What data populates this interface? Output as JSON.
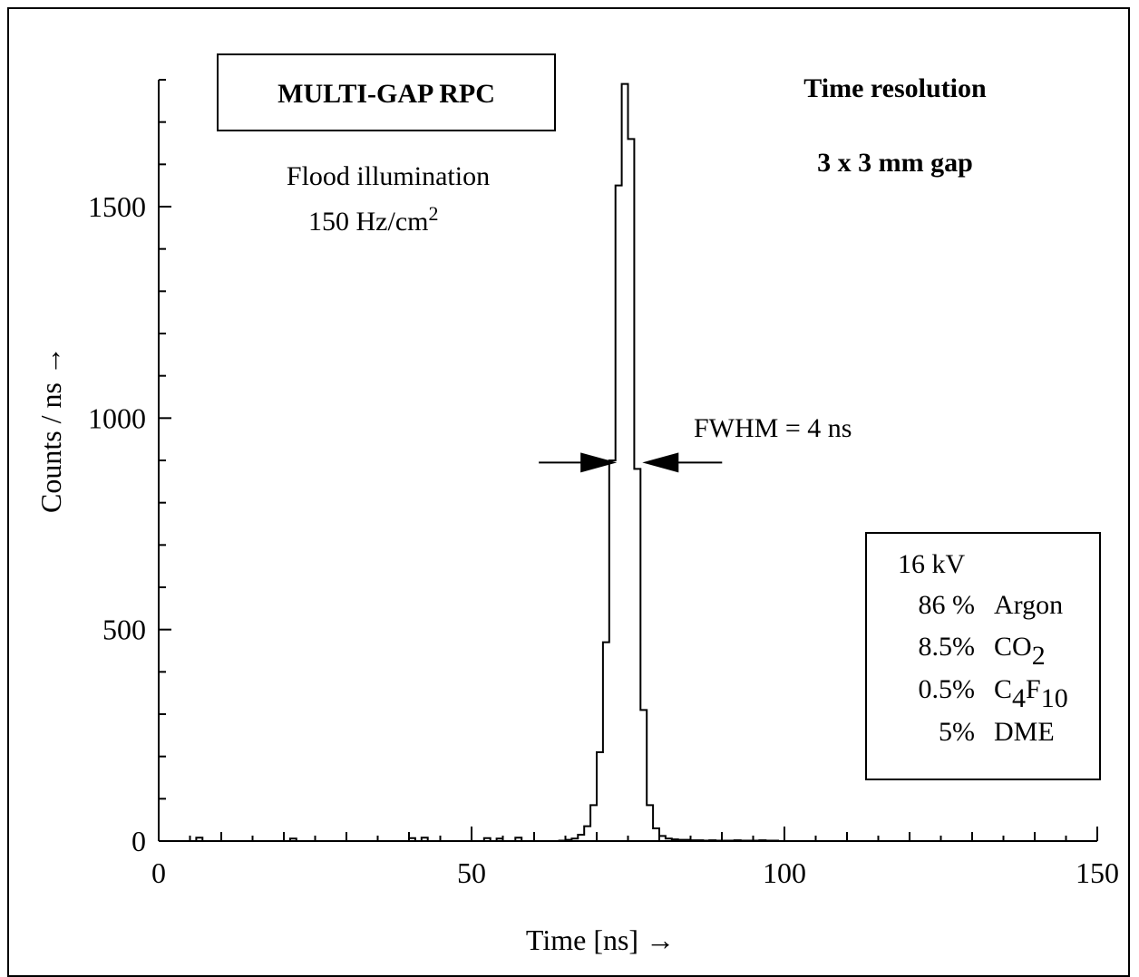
{
  "chart_data": {
    "type": "histogram",
    "title_box": "MULTI-GAP RPC",
    "annotation_left": {
      "line1": "Flood illumination",
      "line2_base": "150 Hz/cm",
      "line2_sup": "2"
    },
    "annotation_right": {
      "line1": "Time resolution",
      "line2": "3 x 3 mm gap"
    },
    "fwhm_label": "FWHM = 4 ns",
    "fwhm_level": 895,
    "fwhm_range": [
      73.5,
      77.0
    ],
    "xlabel": "Time [ns] →",
    "ylabel": "Counts / ns →",
    "xlim": [
      0,
      150
    ],
    "ylim": [
      0,
      1800
    ],
    "x_ticks": [
      "0",
      "50",
      "100",
      "150"
    ],
    "y_ticks": [
      "0",
      "500",
      "1000",
      "1500"
    ],
    "legend_box": {
      "voltage": "16 kV",
      "rows": [
        {
          "pct": "86 %",
          "gas": "Argon",
          "sub1": "",
          "gas2": "",
          "sub2": ""
        },
        {
          "pct": "8.5%",
          "gas": "CO",
          "sub1": "2",
          "gas2": "",
          "sub2": ""
        },
        {
          "pct": "0.5%",
          "gas": "C",
          "sub1": "4",
          "gas2": "F",
          "sub2": "10"
        },
        {
          "pct": "5%",
          "gas": "DME",
          "sub1": "",
          "gas2": "",
          "sub2": ""
        }
      ]
    },
    "bin_width": 1,
    "bin_edges_start": 64,
    "values": [
      1,
      3,
      6,
      15,
      35,
      85,
      210,
      470,
      900,
      1550,
      1790,
      1660,
      880,
      310,
      85,
      30,
      12,
      6,
      4,
      3,
      3,
      2,
      2,
      1,
      2,
      1,
      1,
      1,
      2,
      1,
      1,
      1,
      2,
      1,
      1
    ],
    "noise_bins": [
      {
        "x": 6,
        "value": 8
      },
      {
        "x": 21,
        "value": 6
      },
      {
        "x": 40,
        "value": 7
      },
      {
        "x": 42,
        "value": 8
      },
      {
        "x": 52,
        "value": 7
      },
      {
        "x": 54,
        "value": 6
      },
      {
        "x": 57,
        "value": 8
      }
    ]
  }
}
